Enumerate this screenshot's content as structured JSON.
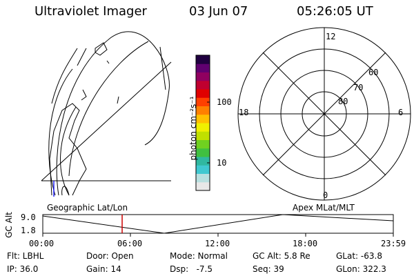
{
  "header": {
    "instrument": "Ultraviolet Imager",
    "date": "03 Jun 07",
    "time": "05:26:05 UT"
  },
  "left_panel": {
    "label": "Geographic Lat/Lon"
  },
  "colorbar": {
    "unit_label": "photon cm⁻²s⁻¹",
    "ticks": [
      "100",
      "10"
    ],
    "colors": [
      "#e8e8e8",
      "#b8e0e0",
      "#40c8d0",
      "#30b8a0",
      "#40c040",
      "#70d020",
      "#c0e000",
      "#f0f000",
      "#ffc000",
      "#ff8000",
      "#ff4000",
      "#e00000",
      "#c00030",
      "#900060",
      "#600070",
      "#200040"
    ]
  },
  "polar_plot": {
    "label": "Apex MLat/MLT",
    "mlt_labels": {
      "top": "12",
      "left": "18",
      "right": "6",
      "bottom": "0"
    },
    "mlat_labels": [
      "60",
      "70",
      "80"
    ]
  },
  "timeline": {
    "ylabel": "GC Alt",
    "y_ticks": [
      "9.0",
      "1.8"
    ],
    "x_ticks": [
      "00:00",
      "06:00",
      "12:00",
      "18:00",
      "23:59"
    ],
    "current_time_fraction": 0.2264,
    "marker_color": "#cc0000"
  },
  "info": {
    "flt": "Flt: LBHL",
    "door": "Door: Open",
    "mode": "Mode: Normal",
    "gcalt": "GC Alt: 5.8 Re",
    "glat": "GLat: -63.8",
    "ip": "IP: 36.0",
    "gain": "Gain: 14",
    "dsp": "Dsp:   -7.5",
    "seq": "Seq: 39",
    "glon": "GLon: 322.3"
  }
}
